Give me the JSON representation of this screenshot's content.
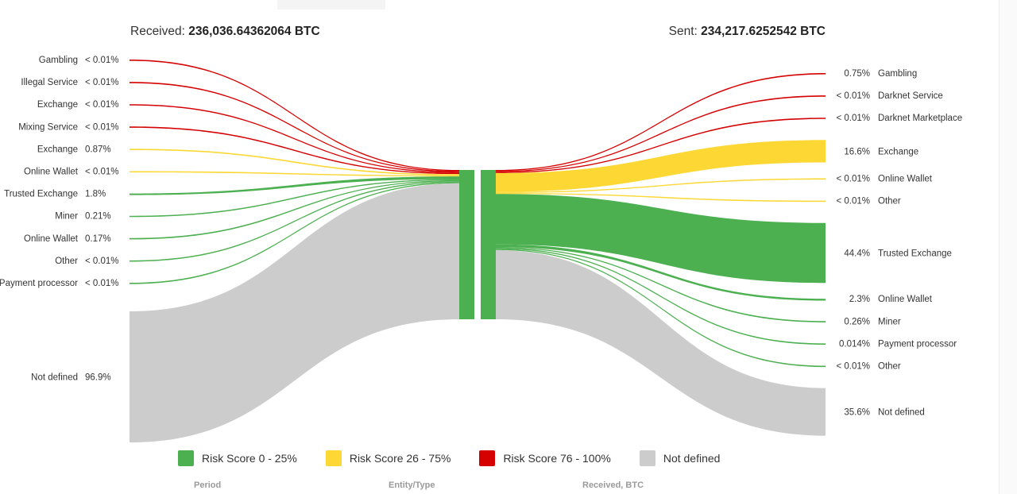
{
  "header": {
    "received_label": "Received:",
    "received_value": "236,036.64362064 BTC",
    "sent_label": "Sent:",
    "sent_value": "234,217.6252542 BTC"
  },
  "colors": {
    "low": "#4caf50",
    "medium": "#fdd835",
    "high": "#d50000",
    "undefined": "#cccccc"
  },
  "received": [
    {
      "name": "Gambling",
      "pct": "< 0.01%",
      "risk": "high",
      "value": 0.01
    },
    {
      "name": "Illegal Service",
      "pct": "< 0.01%",
      "risk": "high",
      "value": 0.01
    },
    {
      "name": "Exchange",
      "pct": "< 0.01%",
      "risk": "high",
      "value": 0.01
    },
    {
      "name": "Mixing Service",
      "pct": "< 0.01%",
      "risk": "high",
      "value": 0.01
    },
    {
      "name": "Exchange",
      "pct": "0.87%",
      "risk": "medium",
      "value": 0.87
    },
    {
      "name": "Online Wallet",
      "pct": "< 0.01%",
      "risk": "medium",
      "value": 0.01
    },
    {
      "name": "Trusted Exchange",
      "pct": "1.8%",
      "risk": "low",
      "value": 1.8
    },
    {
      "name": "Miner",
      "pct": "0.21%",
      "risk": "low",
      "value": 0.21
    },
    {
      "name": "Online Wallet",
      "pct": "0.17%",
      "risk": "low",
      "value": 0.17
    },
    {
      "name": "Other",
      "pct": "< 0.01%",
      "risk": "low",
      "value": 0.01
    },
    {
      "name": "Payment processor",
      "pct": "< 0.01%",
      "risk": "low",
      "value": 0.01
    },
    {
      "name": "Not defined",
      "pct": "96.9%",
      "risk": "undefined",
      "value": 96.9
    }
  ],
  "sent": [
    {
      "name": "Gambling",
      "pct": "0.75%",
      "risk": "high",
      "value": 0.75
    },
    {
      "name": "Darknet Service",
      "pct": "< 0.01%",
      "risk": "high",
      "value": 0.01
    },
    {
      "name": "Darknet Marketplace",
      "pct": "< 0.01%",
      "risk": "high",
      "value": 0.01
    },
    {
      "name": "Exchange",
      "pct": "16.6%",
      "risk": "medium",
      "value": 16.6
    },
    {
      "name": "Online Wallet",
      "pct": "< 0.01%",
      "risk": "medium",
      "value": 0.01
    },
    {
      "name": "Other",
      "pct": "< 0.01%",
      "risk": "medium",
      "value": 0.01
    },
    {
      "name": "Trusted Exchange",
      "pct": "44.4%",
      "risk": "low",
      "value": 44.4
    },
    {
      "name": "Online Wallet",
      "pct": "2.3%",
      "risk": "low",
      "value": 2.3
    },
    {
      "name": "Miner",
      "pct": "0.26%",
      "risk": "low",
      "value": 0.26
    },
    {
      "name": "Payment processor",
      "pct": "0.014%",
      "risk": "low",
      "value": 0.014
    },
    {
      "name": "Other",
      "pct": "< 0.01%",
      "risk": "low",
      "value": 0.01
    },
    {
      "name": "Not defined",
      "pct": "35.6%",
      "risk": "undefined",
      "value": 35.6
    }
  ],
  "legend": [
    {
      "label": "Risk Score 0 - 25%",
      "color": "#4caf50"
    },
    {
      "label": "Risk Score 26 - 75%",
      "color": "#fdd835"
    },
    {
      "label": "Risk Score 76 - 100%",
      "color": "#d50000"
    },
    {
      "label": "Not defined",
      "color": "#cccccc"
    }
  ],
  "table_headers": [
    "Period",
    "Entity/Type",
    "Received, BTC"
  ]
}
